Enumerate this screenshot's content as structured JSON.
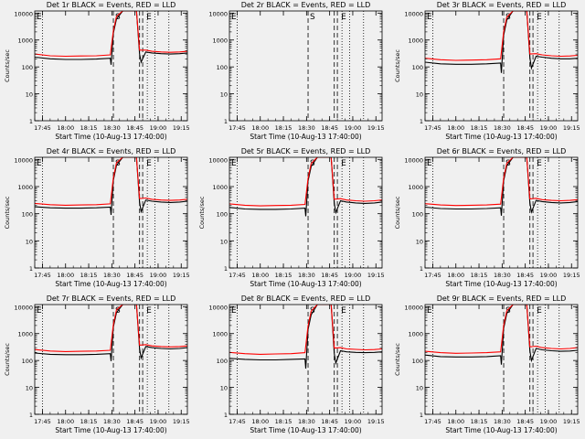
{
  "colors": {
    "background": "#f0f0f0",
    "axis": "#000000",
    "events": "#000000",
    "lld": "#ff0000"
  },
  "chart_data": [
    {
      "type": "line",
      "title": "Det 1r BLACK = Events, RED = LLD",
      "xlabel": "Start Time (10-Aug-13 17:40:00)",
      "ylabel": "Counts/sec",
      "xticks": [
        "17:45",
        "18:00",
        "18:15",
        "18:30",
        "18:45",
        "19:00",
        "19:15"
      ],
      "yticks": [
        "1",
        "10",
        "100",
        "1000",
        "10000"
      ],
      "xlim_min": [
        0,
        99
      ],
      "ylim": [
        1,
        12000
      ],
      "yscale": "log",
      "marker_letters": [
        "E",
        "S",
        "E"
      ],
      "dashed_min": [
        51,
        68,
        70
      ],
      "dotted_min": [
        5,
        73,
        78,
        87
      ],
      "series": [
        {
          "name": "Events",
          "x": [
            0,
            10,
            20,
            30,
            40,
            49,
            49.5,
            51,
            53,
            57,
            62,
            66,
            68,
            69,
            72,
            76,
            82,
            88,
            94,
            99
          ],
          "y": [
            230,
            200,
            190,
            190,
            195,
            210,
            120,
            1800,
            6000,
            12000,
            12000,
            12000,
            300,
            150,
            360,
            330,
            310,
            300,
            310,
            330
          ]
        },
        {
          "name": "LLD",
          "x": [
            0,
            10,
            20,
            30,
            40,
            49,
            51,
            53,
            57,
            62,
            66,
            68,
            72,
            76,
            82,
            88,
            94,
            99
          ],
          "y": [
            300,
            260,
            250,
            255,
            260,
            280,
            2200,
            7500,
            12000,
            12000,
            12000,
            420,
            420,
            380,
            360,
            350,
            360,
            380
          ]
        }
      ]
    },
    {
      "type": "line",
      "title": "Det 2r BLACK = Events, RED = LLD",
      "xlabel": "Start Time (10-Aug-13 17:40:00)",
      "ylabel": "",
      "xticks": [
        "17:45",
        "18:00",
        "18:15",
        "18:30",
        "18:45",
        "19:00",
        "19:15"
      ],
      "yticks": [
        "1",
        "10",
        "100",
        "1000",
        "10000"
      ],
      "xlim_min": [
        0,
        99
      ],
      "ylim": [
        1,
        12000
      ],
      "yscale": "log",
      "marker_letters": [
        "E",
        "S",
        "E"
      ],
      "dashed_min": [
        51,
        68,
        70
      ],
      "dotted_min": [
        5,
        73,
        78,
        87
      ],
      "series": [
        {
          "name": "Events",
          "x": [],
          "y": []
        },
        {
          "name": "LLD",
          "x": [],
          "y": []
        }
      ]
    },
    {
      "type": "line",
      "title": "Det 3r BLACK = Events, RED = LLD",
      "xlabel": "Start Time (10-Aug-13 17:40:00)",
      "ylabel": "Counts/sec",
      "xticks": [
        "17:45",
        "18:00",
        "18:15",
        "18:30",
        "18:45",
        "19:00",
        "19:15"
      ],
      "yticks": [
        "1",
        "10",
        "100",
        "1000",
        "10000"
      ],
      "xlim_min": [
        0,
        99
      ],
      "ylim": [
        1,
        12000
      ],
      "yscale": "log",
      "marker_letters": [
        "E",
        "S",
        "E"
      ],
      "dashed_min": [
        51,
        68,
        70
      ],
      "dotted_min": [
        5,
        73,
        78,
        87
      ],
      "series": [
        {
          "name": "Events",
          "x": [
            0,
            10,
            20,
            30,
            40,
            49,
            49.5,
            51,
            53,
            57,
            62,
            66,
            68,
            69,
            72,
            76,
            82,
            88,
            94,
            99
          ],
          "y": [
            150,
            130,
            125,
            125,
            130,
            140,
            60,
            1500,
            5500,
            12000,
            12000,
            12000,
            220,
            90,
            250,
            230,
            210,
            200,
            200,
            210
          ]
        },
        {
          "name": "LLD",
          "x": [
            0,
            10,
            20,
            30,
            40,
            49,
            51,
            53,
            57,
            62,
            66,
            68,
            72,
            76,
            82,
            88,
            94,
            99
          ],
          "y": [
            210,
            185,
            175,
            180,
            185,
            200,
            2000,
            7000,
            12000,
            12000,
            12000,
            300,
            310,
            280,
            260,
            250,
            255,
            270
          ]
        }
      ]
    },
    {
      "type": "line",
      "title": "Det 4r BLACK = Events, RED = LLD",
      "xlabel": "Start Time (10-Aug-13 17:40:00)",
      "ylabel": "Counts/sec",
      "xticks": [
        "17:45",
        "18:00",
        "18:15",
        "18:30",
        "18:45",
        "19:00",
        "19:15"
      ],
      "yticks": [
        "1",
        "10",
        "100",
        "1000",
        "10000"
      ],
      "xlim_min": [
        0,
        99
      ],
      "ylim": [
        1,
        12000
      ],
      "yscale": "log",
      "marker_letters": [
        "E",
        "S",
        "E"
      ],
      "dashed_min": [
        51,
        68,
        70
      ],
      "dotted_min": [
        5,
        73,
        78,
        87
      ],
      "series": [
        {
          "name": "Events",
          "x": [
            0,
            10,
            20,
            30,
            40,
            49,
            49.5,
            51,
            53,
            57,
            62,
            66,
            68,
            69,
            72,
            76,
            82,
            88,
            94,
            99
          ],
          "y": [
            180,
            165,
            160,
            160,
            165,
            175,
            90,
            1700,
            6000,
            12000,
            12000,
            12000,
            260,
            120,
            320,
            290,
            270,
            260,
            270,
            290
          ]
        },
        {
          "name": "LLD",
          "x": [
            0,
            10,
            20,
            30,
            40,
            49,
            51,
            53,
            57,
            62,
            66,
            68,
            72,
            76,
            82,
            88,
            94,
            99
          ],
          "y": [
            240,
            215,
            205,
            210,
            215,
            230,
            2100,
            7500,
            12000,
            12000,
            12000,
            360,
            380,
            340,
            320,
            310,
            320,
            340
          ]
        }
      ]
    },
    {
      "type": "line",
      "title": "Det 5r BLACK = Events, RED = LLD",
      "xlabel": "Start Time (10-Aug-13 17:40:00)",
      "ylabel": "Counts/sec",
      "xticks": [
        "17:45",
        "18:00",
        "18:15",
        "18:30",
        "18:45",
        "19:00",
        "19:15"
      ],
      "yticks": [
        "1",
        "10",
        "100",
        "1000",
        "10000"
      ],
      "xlim_min": [
        0,
        99
      ],
      "ylim": [
        1,
        12000
      ],
      "yscale": "log",
      "marker_letters": [
        "E",
        "S",
        "E"
      ],
      "dashed_min": [
        51,
        68,
        70
      ],
      "dotted_min": [
        5,
        73,
        78,
        87
      ],
      "series": [
        {
          "name": "Events",
          "x": [
            0,
            10,
            20,
            30,
            40,
            49,
            49.5,
            51,
            53,
            57,
            62,
            66,
            68,
            69,
            72,
            76,
            82,
            88,
            94,
            99
          ],
          "y": [
            170,
            150,
            145,
            145,
            150,
            160,
            80,
            1600,
            5500,
            12000,
            12000,
            12000,
            240,
            110,
            300,
            270,
            250,
            240,
            250,
            270
          ]
        },
        {
          "name": "LLD",
          "x": [
            0,
            10,
            20,
            30,
            40,
            49,
            51,
            53,
            57,
            62,
            66,
            68,
            72,
            76,
            82,
            88,
            94,
            99
          ],
          "y": [
            230,
            205,
            195,
            200,
            205,
            220,
            2000,
            7000,
            12000,
            12000,
            12000,
            340,
            360,
            320,
            300,
            290,
            300,
            320
          ]
        }
      ]
    },
    {
      "type": "line",
      "title": "Det 6r BLACK = Events, RED = LLD",
      "xlabel": "Start Time (10-Aug-13 17:40:00)",
      "ylabel": "Counts/sec",
      "xticks": [
        "17:45",
        "18:00",
        "18:15",
        "18:30",
        "18:45",
        "19:00",
        "19:15"
      ],
      "yticks": [
        "1",
        "10",
        "100",
        "1000",
        "10000"
      ],
      "xlim_min": [
        0,
        99
      ],
      "ylim": [
        1,
        12000
      ],
      "yscale": "log",
      "marker_letters": [
        "E",
        "S",
        "E"
      ],
      "dashed_min": [
        51,
        68,
        70
      ],
      "dotted_min": [
        5,
        73,
        78,
        87
      ],
      "series": [
        {
          "name": "Events",
          "x": [
            0,
            10,
            20,
            30,
            40,
            49,
            49.5,
            51,
            53,
            57,
            62,
            66,
            68,
            69,
            72,
            76,
            82,
            88,
            94,
            99
          ],
          "y": [
            175,
            155,
            150,
            150,
            155,
            165,
            85,
            1650,
            5800,
            12000,
            12000,
            12000,
            250,
            115,
            310,
            280,
            260,
            250,
            260,
            280
          ]
        },
        {
          "name": "LLD",
          "x": [
            0,
            10,
            20,
            30,
            40,
            49,
            51,
            53,
            57,
            62,
            66,
            68,
            72,
            76,
            82,
            88,
            94,
            99
          ],
          "y": [
            235,
            210,
            200,
            205,
            210,
            225,
            2050,
            7200,
            12000,
            12000,
            12000,
            350,
            370,
            330,
            310,
            300,
            310,
            330
          ]
        }
      ]
    },
    {
      "type": "line",
      "title": "Det 7r BLACK = Events, RED = LLD",
      "xlabel": "Start Time (10-Aug-13 17:40:00)",
      "ylabel": "Counts/sec",
      "xticks": [
        "17:45",
        "18:00",
        "18:15",
        "18:30",
        "18:45",
        "19:00",
        "19:15"
      ],
      "yticks": [
        "1",
        "10",
        "100",
        "1000",
        "10000"
      ],
      "xlim_min": [
        0,
        99
      ],
      "ylim": [
        1,
        12000
      ],
      "yscale": "log",
      "marker_letters": [
        "E",
        "S",
        "E"
      ],
      "dashed_min": [
        51,
        68,
        70
      ],
      "dotted_min": [
        5,
        73,
        78,
        87
      ],
      "series": [
        {
          "name": "Events",
          "x": [
            0,
            10,
            20,
            30,
            40,
            49,
            49.5,
            51,
            53,
            57,
            62,
            66,
            68,
            69,
            72,
            76,
            82,
            88,
            94,
            99
          ],
          "y": [
            190,
            170,
            165,
            165,
            170,
            180,
            95,
            1750,
            6000,
            12000,
            12000,
            12000,
            270,
            125,
            330,
            300,
            280,
            270,
            280,
            300
          ]
        },
        {
          "name": "LLD",
          "x": [
            0,
            10,
            20,
            30,
            40,
            49,
            51,
            53,
            57,
            62,
            66,
            68,
            72,
            76,
            82,
            88,
            94,
            99
          ],
          "y": [
            255,
            225,
            215,
            220,
            225,
            240,
            2150,
            7600,
            12000,
            12000,
            12000,
            370,
            390,
            350,
            330,
            320,
            330,
            350
          ]
        }
      ]
    },
    {
      "type": "line",
      "title": "Det 8r BLACK = Events, RED = LLD",
      "xlabel": "Start Time (10-Aug-13 17:40:00)",
      "ylabel": "",
      "xticks": [
        "17:45",
        "18:00",
        "18:15",
        "18:30",
        "18:45",
        "19:00",
        "19:15"
      ],
      "yticks": [
        "1",
        "10",
        "100",
        "1000",
        "10000"
      ],
      "xlim_min": [
        0,
        99
      ],
      "ylim": [
        1,
        12000
      ],
      "yscale": "log",
      "marker_letters": [
        "E",
        "S",
        "E"
      ],
      "dashed_min": [
        51,
        68,
        70
      ],
      "dotted_min": [
        5,
        73,
        78,
        87
      ],
      "series": [
        {
          "name": "Events",
          "x": [
            0,
            10,
            20,
            30,
            40,
            49,
            49.5,
            51,
            53,
            57,
            62,
            66,
            68,
            69,
            72,
            76,
            82,
            88,
            94,
            99
          ],
          "y": [
            120,
            110,
            105,
            105,
            110,
            115,
            50,
            1400,
            5000,
            12000,
            12000,
            12000,
            180,
            80,
            230,
            210,
            200,
            195,
            200,
            210
          ]
        },
        {
          "name": "LLD",
          "x": [
            0,
            10,
            20,
            30,
            40,
            49,
            51,
            53,
            57,
            62,
            66,
            68,
            72,
            76,
            82,
            88,
            94,
            99
          ],
          "y": [
            200,
            180,
            170,
            175,
            180,
            195,
            1900,
            6800,
            12000,
            12000,
            12000,
            290,
            300,
            270,
            260,
            250,
            255,
            270
          ]
        }
      ]
    },
    {
      "type": "line",
      "title": "Det 9r BLACK = Events, RED = LLD",
      "xlabel": "Start Time (10-Aug-13 17:40:00)",
      "ylabel": "Counts/sec",
      "xticks": [
        "17:45",
        "18:00",
        "18:15",
        "18:30",
        "18:45",
        "19:00",
        "19:15"
      ],
      "yticks": [
        "1",
        "10",
        "100",
        "1000",
        "10000"
      ],
      "xlim_min": [
        0,
        99
      ],
      "ylim": [
        1,
        12000
      ],
      "yscale": "log",
      "marker_letters": [
        "E",
        "S",
        "E"
      ],
      "dashed_min": [
        51,
        68,
        70
      ],
      "dotted_min": [
        5,
        73,
        78,
        87
      ],
      "series": [
        {
          "name": "Events",
          "x": [
            0,
            10,
            20,
            30,
            40,
            49,
            49.5,
            51,
            53,
            57,
            62,
            66,
            68,
            69,
            72,
            76,
            82,
            88,
            94,
            99
          ],
          "y": [
            160,
            140,
            135,
            135,
            140,
            150,
            70,
            1550,
            5500,
            12000,
            12000,
            12000,
            230,
            100,
            280,
            250,
            230,
            220,
            225,
            240
          ]
        },
        {
          "name": "LLD",
          "x": [
            0,
            10,
            20,
            30,
            40,
            49,
            51,
            53,
            57,
            62,
            66,
            68,
            72,
            76,
            82,
            88,
            94,
            99
          ],
          "y": [
            220,
            195,
            185,
            190,
            195,
            210,
            2000,
            7000,
            12000,
            12000,
            12000,
            320,
            340,
            300,
            280,
            270,
            280,
            300
          ]
        }
      ]
    }
  ]
}
